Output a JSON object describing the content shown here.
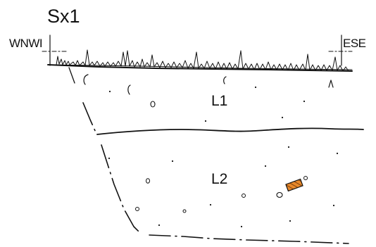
{
  "section": {
    "id": "Sx1",
    "orientation_left": "WNWI",
    "orientation_right": "ESE"
  },
  "layers": [
    {
      "label": "L1"
    },
    {
      "label": "L2"
    }
  ],
  "colors": {
    "ink": "#111111",
    "find_fill": "#e8892a",
    "find_hatch": "#7a3e10"
  }
}
